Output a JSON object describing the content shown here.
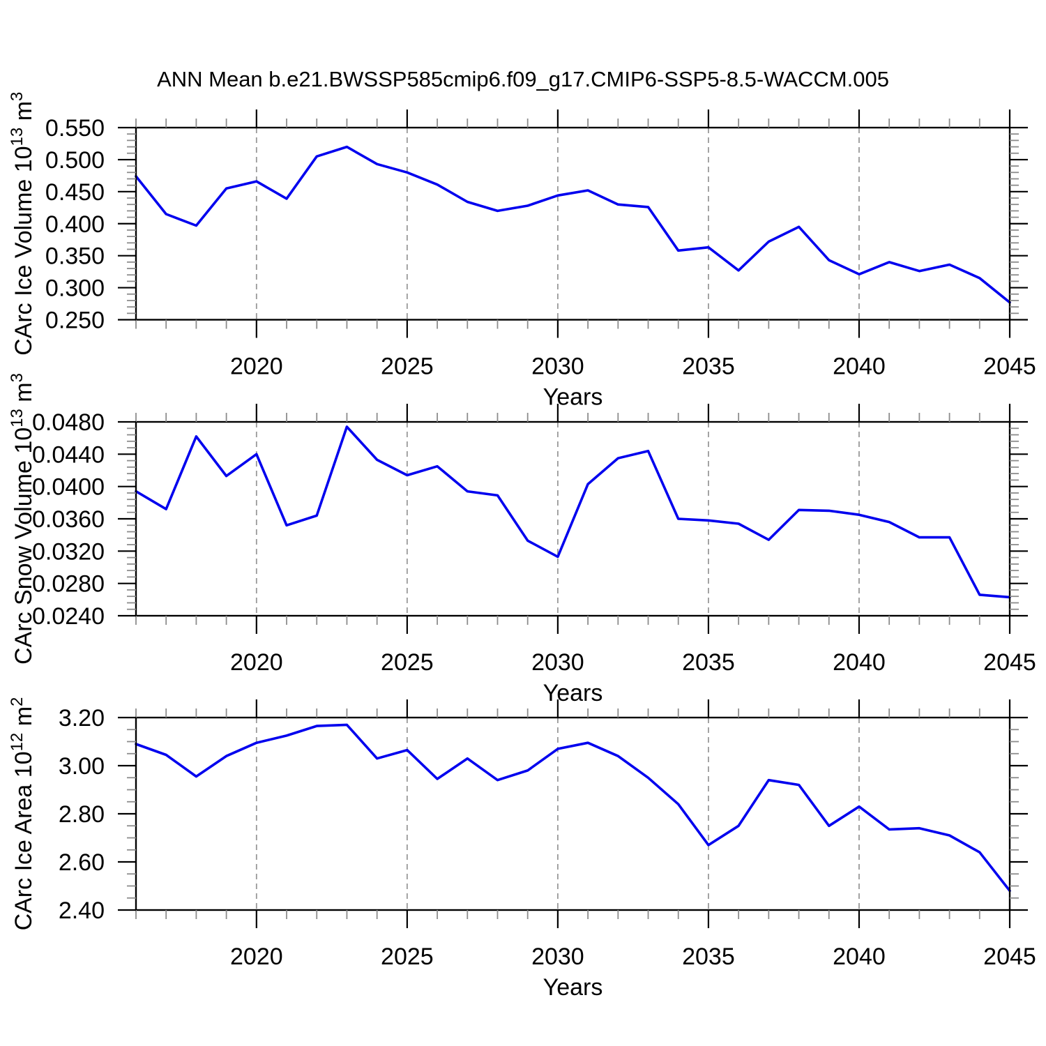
{
  "title": "ANN Mean b.e21.BWSSP585cmip6.f09_g17.CMIP6-SSP5-8.5-WACCM.005",
  "colors": {
    "line": "#0000ee",
    "axis": "#000000",
    "minor_tick": "#8c8c8c",
    "grid": "#999999",
    "background": "#ffffff"
  },
  "chart_data": [
    {
      "id": "ice-volume",
      "type": "line",
      "title": "",
      "ylabel": "CArc Ice Volume 10^13 m^3",
      "ylabel_segments": [
        {
          "t": "CArc Ice Volume 10"
        },
        {
          "t": "13",
          "sup": true
        },
        {
          "t": " m"
        },
        {
          "t": "3",
          "sup": true
        }
      ],
      "xlabel": "Years",
      "x": [
        2016,
        2017,
        2018,
        2019,
        2020,
        2021,
        2022,
        2023,
        2024,
        2025,
        2026,
        2027,
        2028,
        2029,
        2030,
        2031,
        2032,
        2033,
        2034,
        2035,
        2036,
        2037,
        2038,
        2039,
        2040,
        2041,
        2042,
        2043,
        2044,
        2045
      ],
      "values": [
        0.474,
        0.415,
        0.397,
        0.455,
        0.466,
        0.439,
        0.505,
        0.52,
        0.493,
        0.48,
        0.461,
        0.434,
        0.42,
        0.428,
        0.444,
        0.452,
        0.43,
        0.426,
        0.358,
        0.363,
        0.327,
        0.372,
        0.395,
        0.343,
        0.321,
        0.34,
        0.326,
        0.336,
        0.315,
        0.277
      ],
      "xlim": [
        2016,
        2045
      ],
      "ylim": [
        0.25,
        0.55
      ],
      "xtick_values": [
        2020,
        2025,
        2030,
        2035,
        2040,
        2045
      ],
      "xtick_labels": [
        "2020",
        "2025",
        "2030",
        "2035",
        "2040",
        "2045"
      ],
      "x_minor_step": 1,
      "ytick_values": [
        0.25,
        0.3,
        0.35,
        0.4,
        0.45,
        0.5,
        0.55
      ],
      "ytick_labels": [
        "0.250",
        "0.300",
        "0.350",
        "0.400",
        "0.450",
        "0.500",
        "0.550"
      ],
      "y_minor_step": 0.01,
      "grid_x": [
        2020,
        2025,
        2030,
        2035,
        2040
      ],
      "grid_style": "vertical-dashed",
      "legend": "none"
    },
    {
      "id": "snow-volume",
      "type": "line",
      "title": "",
      "ylabel": "CArc Snow Volume 10^13 m^3",
      "ylabel_segments": [
        {
          "t": "CArc Snow Volume 10"
        },
        {
          "t": "13",
          "sup": true
        },
        {
          "t": " m"
        },
        {
          "t": "3",
          "sup": true
        }
      ],
      "xlabel": "Years",
      "x": [
        2016,
        2017,
        2018,
        2019,
        2020,
        2021,
        2022,
        2023,
        2024,
        2025,
        2026,
        2027,
        2028,
        2029,
        2030,
        2031,
        2032,
        2033,
        2034,
        2035,
        2036,
        2037,
        2038,
        2039,
        2040,
        2041,
        2042,
        2043,
        2044,
        2045
      ],
      "values": [
        0.0394,
        0.0372,
        0.0462,
        0.0413,
        0.044,
        0.0352,
        0.0364,
        0.0474,
        0.0433,
        0.0414,
        0.0425,
        0.0394,
        0.0389,
        0.0333,
        0.0313,
        0.0403,
        0.0435,
        0.0444,
        0.036,
        0.0358,
        0.0354,
        0.0334,
        0.0371,
        0.037,
        0.0365,
        0.0356,
        0.0337,
        0.0337,
        0.0266,
        0.0263
      ],
      "xlim": [
        2016,
        2045
      ],
      "ylim": [
        0.024,
        0.048
      ],
      "xtick_values": [
        2020,
        2025,
        2030,
        2035,
        2040,
        2045
      ],
      "xtick_labels": [
        "2020",
        "2025",
        "2030",
        "2035",
        "2040",
        "2045"
      ],
      "x_minor_step": 1,
      "ytick_values": [
        0.024,
        0.028,
        0.032,
        0.036,
        0.04,
        0.044,
        0.048
      ],
      "ytick_labels": [
        "0.0240",
        "0.0280",
        "0.0320",
        "0.0360",
        "0.0400",
        "0.0440",
        "0.0480"
      ],
      "y_minor_step": 0.0008,
      "grid_x": [
        2020,
        2025,
        2030,
        2035,
        2040
      ],
      "grid_style": "vertical-dashed",
      "legend": "none"
    },
    {
      "id": "ice-area",
      "type": "line",
      "title": "",
      "ylabel": "CArc Ice Area 10^12 m^2",
      "ylabel_segments": [
        {
          "t": "CArc Ice Area 10"
        },
        {
          "t": "12",
          "sup": true
        },
        {
          "t": " m"
        },
        {
          "t": "2",
          "sup": true
        }
      ],
      "xlabel": "Years",
      "x": [
        2016,
        2017,
        2018,
        2019,
        2020,
        2021,
        2022,
        2023,
        2024,
        2025,
        2026,
        2027,
        2028,
        2029,
        2030,
        2031,
        2032,
        2033,
        2034,
        2035,
        2036,
        2037,
        2038,
        2039,
        2040,
        2041,
        2042,
        2043,
        2044,
        2045
      ],
      "values": [
        3.09,
        3.045,
        2.955,
        3.04,
        3.095,
        3.125,
        3.165,
        3.17,
        3.03,
        3.065,
        2.945,
        3.03,
        2.94,
        2.98,
        3.07,
        3.095,
        3.04,
        2.95,
        2.84,
        2.67,
        2.75,
        2.94,
        2.92,
        2.75,
        2.83,
        2.735,
        2.74,
        2.71,
        2.64,
        2.48
      ],
      "xlim": [
        2016,
        2045
      ],
      "ylim": [
        2.4,
        3.2
      ],
      "xtick_values": [
        2020,
        2025,
        2030,
        2035,
        2040,
        2045
      ],
      "xtick_labels": [
        "2020",
        "2025",
        "2030",
        "2035",
        "2040",
        "2045"
      ],
      "x_minor_step": 1,
      "ytick_values": [
        2.4,
        2.6,
        2.8,
        3.0,
        3.2
      ],
      "ytick_labels": [
        "2.40",
        "2.60",
        "2.80",
        "3.00",
        "3.20"
      ],
      "y_minor_step": 0.05,
      "grid_x": [
        2020,
        2025,
        2030,
        2035,
        2040
      ],
      "grid_style": "vertical-dashed",
      "legend": "none"
    }
  ]
}
